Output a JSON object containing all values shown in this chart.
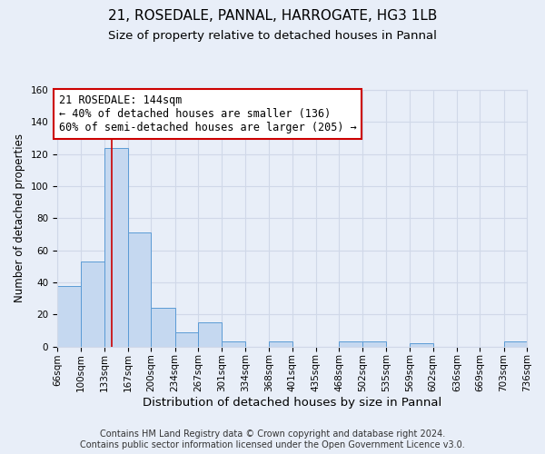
{
  "title": "21, ROSEDALE, PANNAL, HARROGATE, HG3 1LB",
  "subtitle": "Size of property relative to detached houses in Pannal",
  "xlabel": "Distribution of detached houses by size in Pannal",
  "ylabel": "Number of detached properties",
  "bar_color": "#c5d8f0",
  "bar_edge_color": "#5b9bd5",
  "bin_edges": [
    66,
    100,
    133,
    167,
    200,
    234,
    267,
    301,
    334,
    368,
    401,
    435,
    468,
    502,
    535,
    569,
    602,
    636,
    669,
    703,
    736
  ],
  "bar_heights": [
    38,
    53,
    124,
    71,
    24,
    9,
    15,
    3,
    0,
    3,
    0,
    0,
    3,
    3,
    0,
    2,
    0,
    0,
    0,
    3
  ],
  "tick_labels": [
    "66sqm",
    "100sqm",
    "133sqm",
    "167sqm",
    "200sqm",
    "234sqm",
    "267sqm",
    "301sqm",
    "334sqm",
    "368sqm",
    "401sqm",
    "435sqm",
    "468sqm",
    "502sqm",
    "535sqm",
    "569sqm",
    "602sqm",
    "636sqm",
    "669sqm",
    "703sqm",
    "736sqm"
  ],
  "vline_x": 144,
  "vline_color": "#cc0000",
  "ylim": [
    0,
    160
  ],
  "yticks": [
    0,
    20,
    40,
    60,
    80,
    100,
    120,
    140,
    160
  ],
  "annotation_title": "21 ROSEDALE: 144sqm",
  "annotation_line1": "← 40% of detached houses are smaller (136)",
  "annotation_line2": "60% of semi-detached houses are larger (205) →",
  "annotation_box_color": "#ffffff",
  "annotation_box_edge": "#cc0000",
  "grid_color": "#d0d8e8",
  "background_color": "#e8eef8",
  "footer1": "Contains HM Land Registry data © Crown copyright and database right 2024.",
  "footer2": "Contains public sector information licensed under the Open Government Licence v3.0.",
  "title_fontsize": 11,
  "subtitle_fontsize": 9.5,
  "xlabel_fontsize": 9.5,
  "ylabel_fontsize": 8.5,
  "tick_fontsize": 7.5,
  "annotation_fontsize": 8.5,
  "footer_fontsize": 7
}
